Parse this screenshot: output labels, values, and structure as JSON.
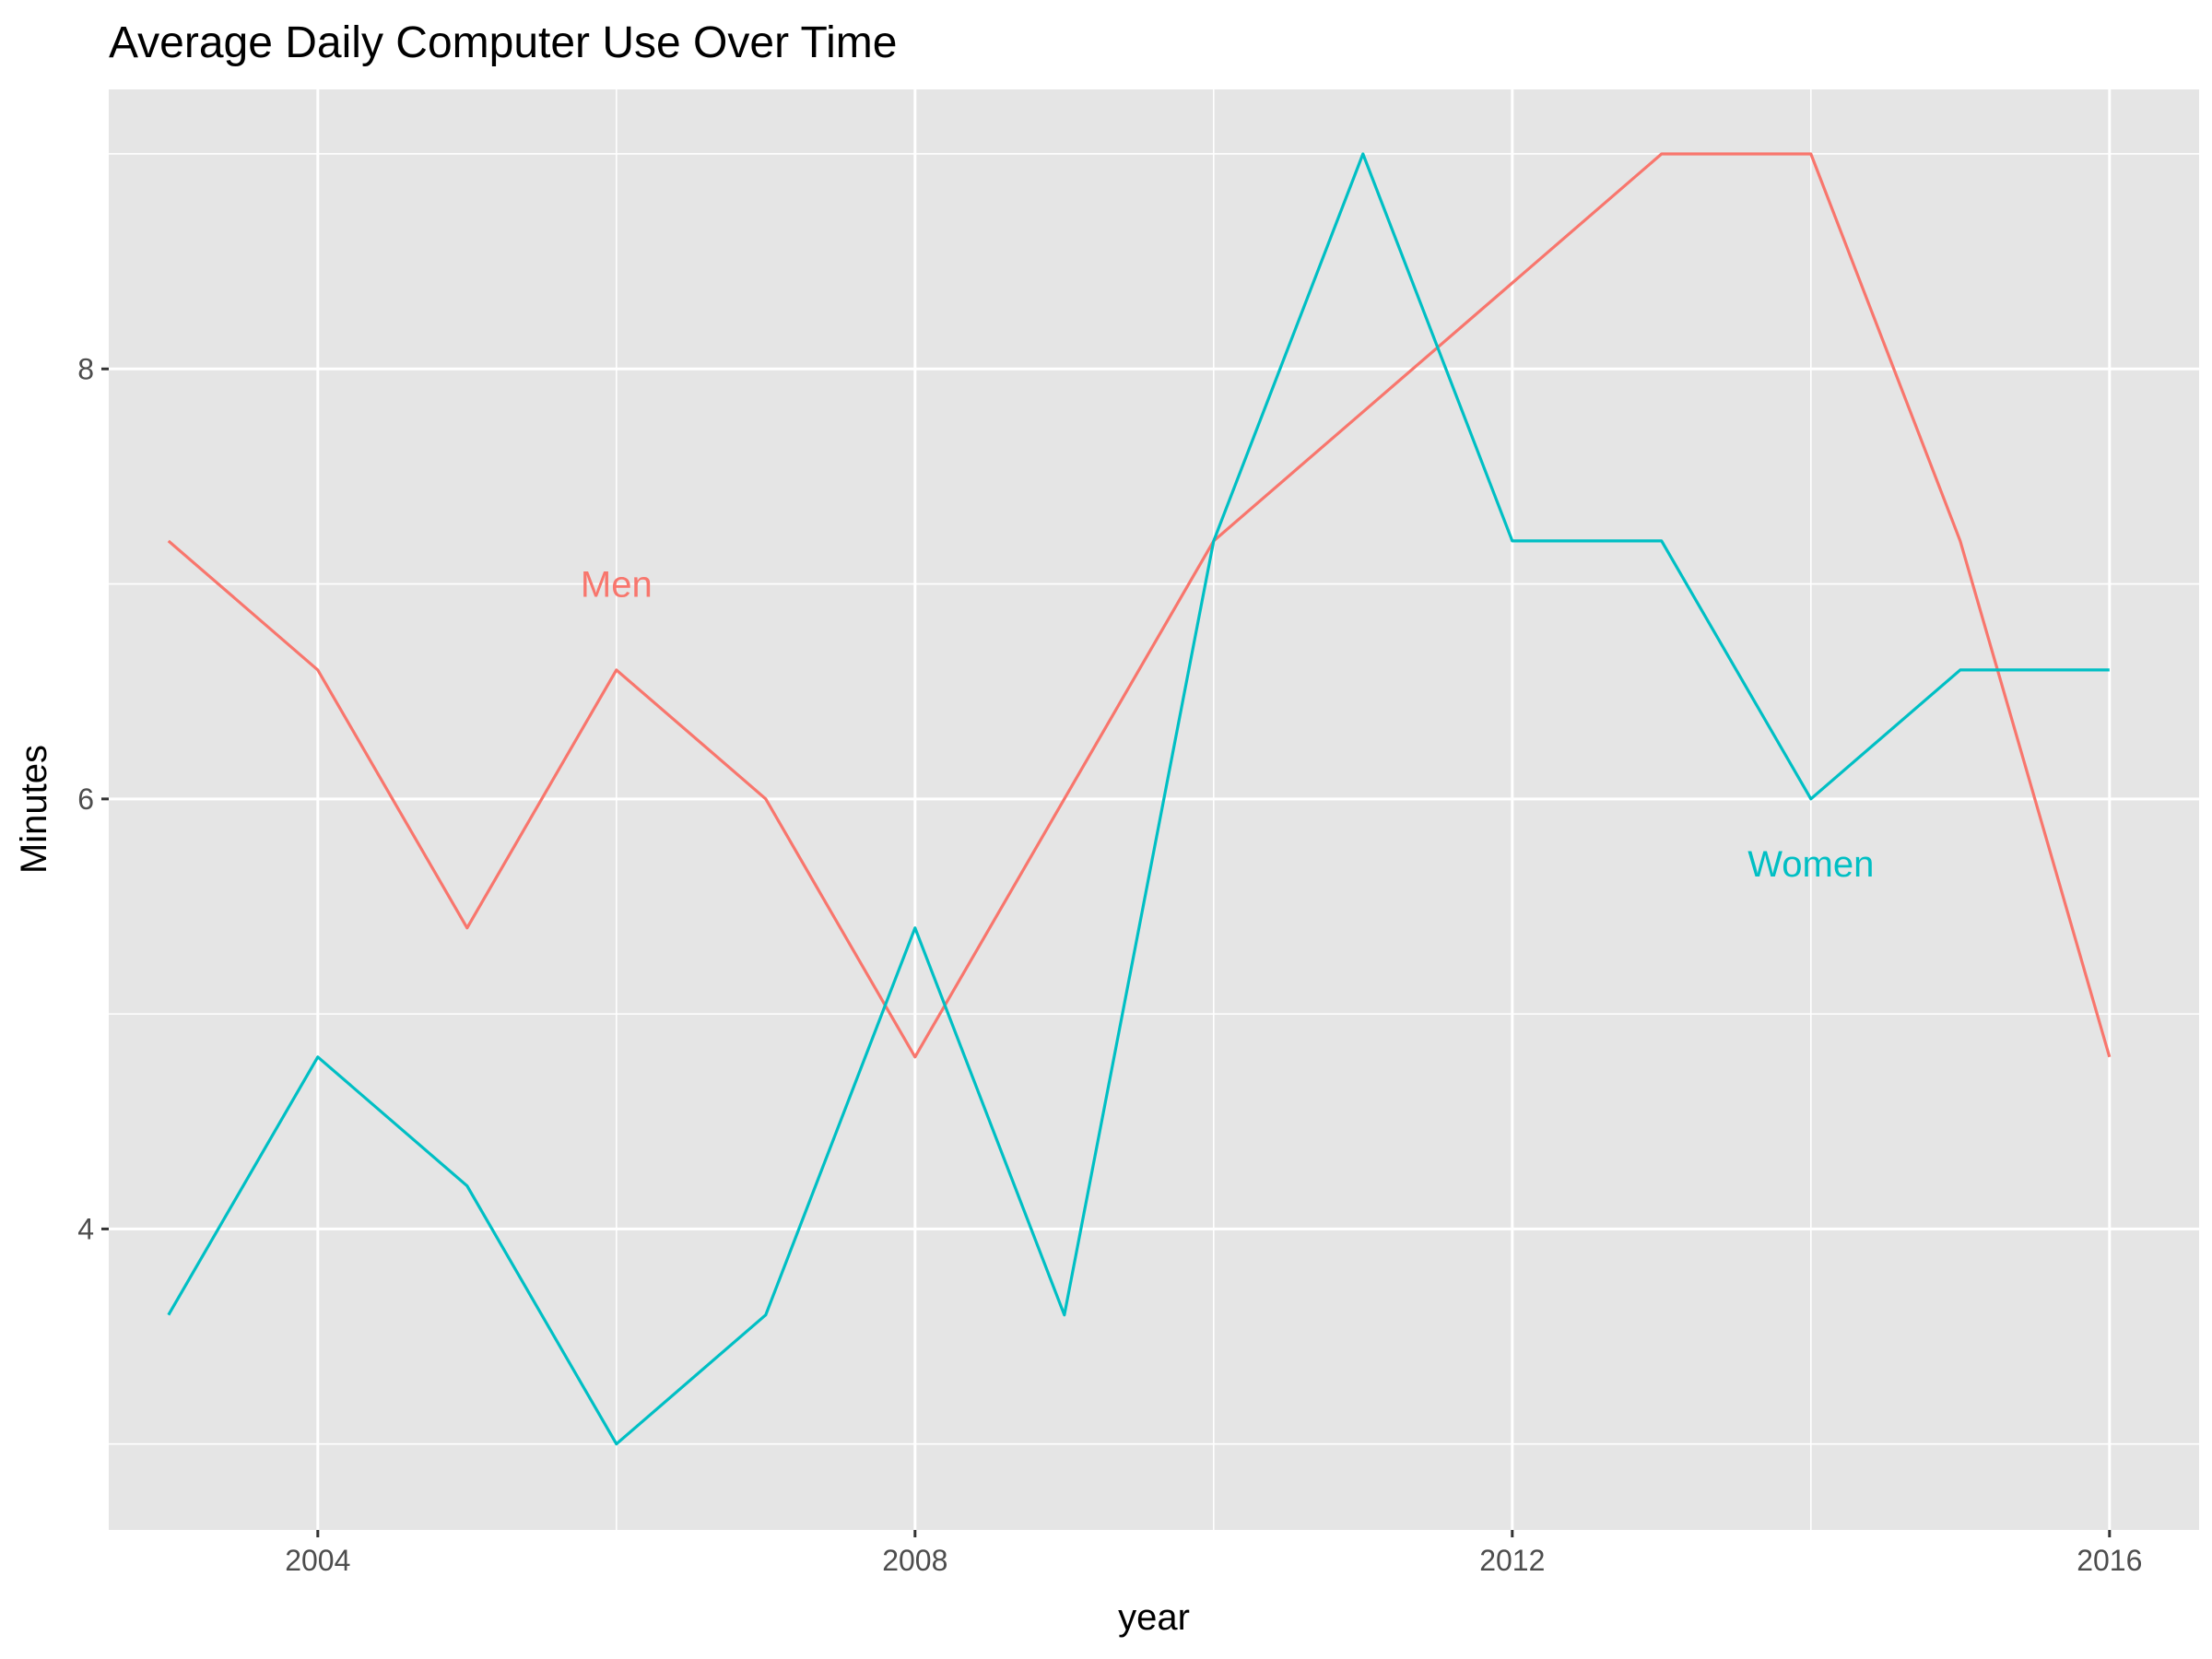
{
  "chart_data": {
    "type": "line",
    "title": "Average Daily Computer Use Over Time",
    "xlabel": "year",
    "ylabel": "Minutes",
    "xlim": [
      2002.6,
      2016.6
    ],
    "ylim": [
      2.6,
      9.3
    ],
    "x_ticks": [
      2004,
      2008,
      2012,
      2016
    ],
    "x_tick_labels": [
      "2004",
      "2008",
      "2012",
      "2016"
    ],
    "y_ticks": [
      4,
      6,
      8
    ],
    "y_tick_labels": [
      "4",
      "6",
      "8"
    ],
    "grid": true,
    "legend": "none (direct labels)",
    "x": [
      2003,
      2004,
      2005,
      2006,
      2007,
      2008,
      2009,
      2010,
      2011,
      2012,
      2013,
      2014,
      2015,
      2016
    ],
    "series": [
      {
        "name": "Men",
        "color": "#F8766D",
        "values": [
          7.2,
          6.6,
          5.4,
          6.6,
          6.0,
          4.8,
          6.0,
          7.2,
          7.8,
          8.4,
          9.0,
          9.0,
          7.2,
          4.8
        ],
        "label_at": [
          2006,
          7.0
        ]
      },
      {
        "name": "Women",
        "color": "#00BFC4",
        "values": [
          3.6,
          4.8,
          4.2,
          3.0,
          3.6,
          5.4,
          3.6,
          7.2,
          9.0,
          7.2,
          7.2,
          6.0,
          6.6,
          6.6
        ],
        "label_at": [
          2014,
          5.7
        ]
      }
    ]
  }
}
